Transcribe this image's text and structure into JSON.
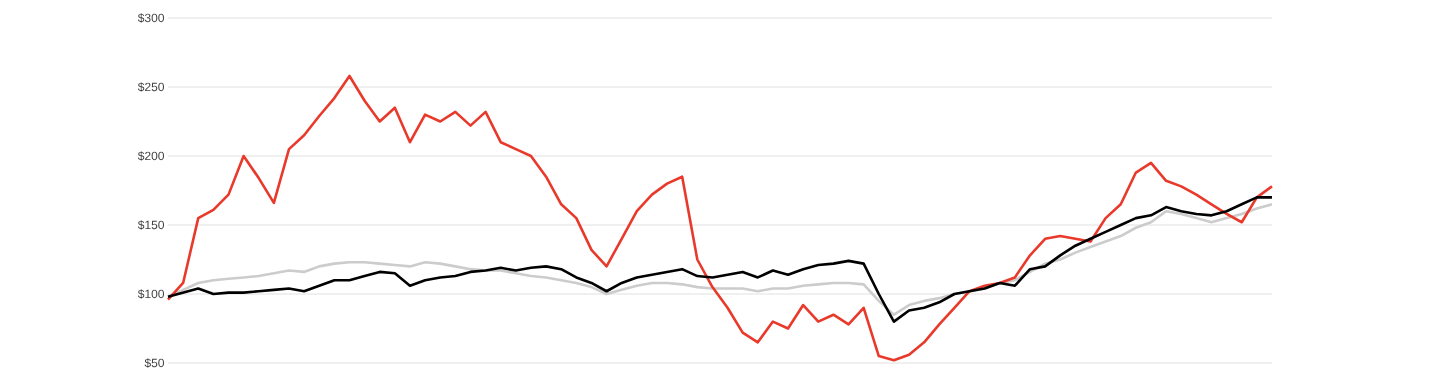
{
  "chart_data": {
    "type": "line",
    "categories": [
      null,
      null,
      null,
      null,
      null,
      null,
      null,
      null,
      null,
      null,
      null,
      null,
      null,
      null,
      null,
      null,
      null,
      null,
      null,
      null,
      null,
      null,
      null,
      null,
      null,
      null,
      null,
      null,
      null,
      null,
      null,
      null,
      null,
      null,
      null,
      null,
      null,
      null,
      null,
      null,
      null,
      null,
      null,
      null,
      null,
      null,
      null,
      null,
      null,
      null,
      null,
      null,
      null,
      null,
      null,
      null,
      null,
      null,
      null,
      null,
      null,
      null,
      null,
      null,
      null,
      null,
      null,
      null,
      null,
      null,
      null,
      null,
      null,
      null
    ],
    "series": [
      {
        "color": "#cccccc",
        "values": [
          98,
          103,
          108,
          110,
          111,
          112,
          113,
          115,
          117,
          116,
          120,
          122,
          123,
          123,
          122,
          121,
          120,
          123,
          122,
          120,
          118,
          117,
          117,
          115,
          113,
          112,
          110,
          108,
          105,
          100,
          103,
          106,
          108,
          108,
          107,
          105,
          104,
          104,
          104,
          102,
          104,
          104,
          106,
          107,
          108,
          108,
          107,
          95,
          85,
          92,
          95,
          97,
          100,
          102,
          104,
          108,
          110,
          116,
          122,
          125,
          130,
          134,
          138,
          142,
          148,
          152,
          160,
          158,
          155,
          152,
          155,
          158,
          162,
          165
        ]
      },
      {
        "color": "#e8392b",
        "values": [
          96,
          108,
          155,
          161,
          172,
          200,
          184,
          166,
          205,
          215,
          229,
          242,
          258,
          240,
          225,
          235,
          210,
          230,
          225,
          232,
          222,
          232,
          210,
          205,
          200,
          185,
          165,
          155,
          132,
          120,
          140,
          160,
          172,
          180,
          185,
          125,
          105,
          90,
          72,
          65,
          80,
          75,
          92,
          80,
          85,
          78,
          90,
          55,
          52,
          56,
          65,
          78,
          90,
          102,
          106,
          108,
          112,
          128,
          140,
          142,
          140,
          138,
          155,
          165,
          188,
          195,
          182,
          178,
          172,
          165,
          158,
          152,
          170,
          178
        ]
      },
      {
        "color": "#000000",
        "values": [
          98,
          101,
          104,
          100,
          101,
          101,
          102,
          103,
          104,
          102,
          106,
          110,
          110,
          113,
          116,
          115,
          106,
          110,
          112,
          113,
          116,
          117,
          119,
          117,
          119,
          120,
          118,
          112,
          108,
          102,
          108,
          112,
          114,
          116,
          118,
          113,
          112,
          114,
          116,
          112,
          117,
          114,
          118,
          121,
          122,
          124,
          122,
          100,
          80,
          88,
          90,
          94,
          100,
          102,
          104,
          108,
          106,
          118,
          120,
          128,
          135,
          140,
          145,
          150,
          155,
          157,
          163,
          160,
          158,
          157,
          160,
          165,
          170,
          170
        ]
      }
    ],
    "ylim": [
      50,
      300
    ],
    "yticks": [
      {
        "value": 50,
        "label": "$50"
      },
      {
        "value": 100,
        "label": "$100"
      },
      {
        "value": 150,
        "label": "$150"
      },
      {
        "value": 200,
        "label": "$200"
      },
      {
        "value": 250,
        "label": "$250"
      },
      {
        "value": 300,
        "label": "$300"
      }
    ],
    "grid": "y",
    "tick_labels": "y",
    "marker": "none",
    "line_style": "solid"
  }
}
